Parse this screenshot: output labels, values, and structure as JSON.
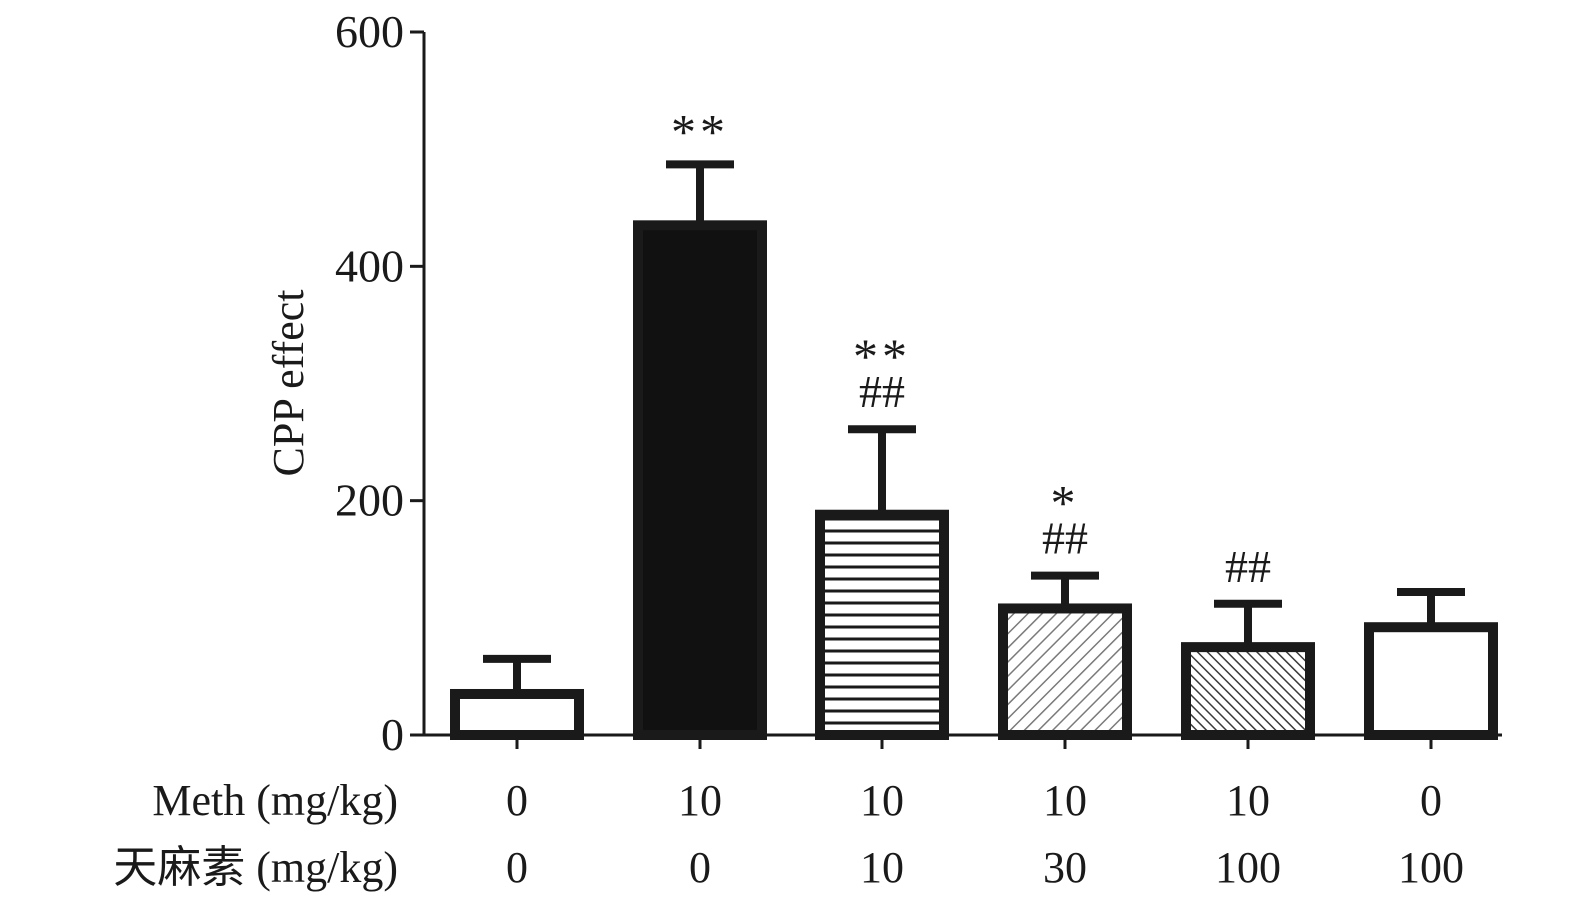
{
  "chart_data": {
    "type": "bar",
    "title": "",
    "xlabel": "",
    "ylabel": "CPP effect",
    "ylim": [
      0,
      600
    ],
    "yticks": [
      0,
      200,
      400,
      600
    ],
    "grid": false,
    "rows": [
      {
        "label": "Meth (mg/kg)",
        "values": [
          "0",
          "10",
          "10",
          "10",
          "10",
          "0"
        ]
      },
      {
        "label": "天麻素 (mg/kg)",
        "values": [
          "0",
          "0",
          "10",
          "30",
          "100",
          "100"
        ]
      }
    ],
    "bars": [
      {
        "value": 35,
        "error": 30,
        "fill": "white",
        "sig_star": "",
        "sig_hash": ""
      },
      {
        "value": 435,
        "error": 52,
        "fill": "black",
        "sig_star": "**",
        "sig_hash": ""
      },
      {
        "value": 188,
        "error": 73,
        "fill": "horizontal-stripes",
        "sig_star": "**",
        "sig_hash": "##"
      },
      {
        "value": 108,
        "error": 28,
        "fill": "diagonal-light",
        "sig_star": "*",
        "sig_hash": "##"
      },
      {
        "value": 75,
        "error": 37,
        "fill": "diagonal-dense",
        "sig_star": "",
        "sig_hash": "##"
      },
      {
        "value": 92,
        "error": 30,
        "fill": "white",
        "sig_star": "",
        "sig_hash": ""
      }
    ]
  }
}
